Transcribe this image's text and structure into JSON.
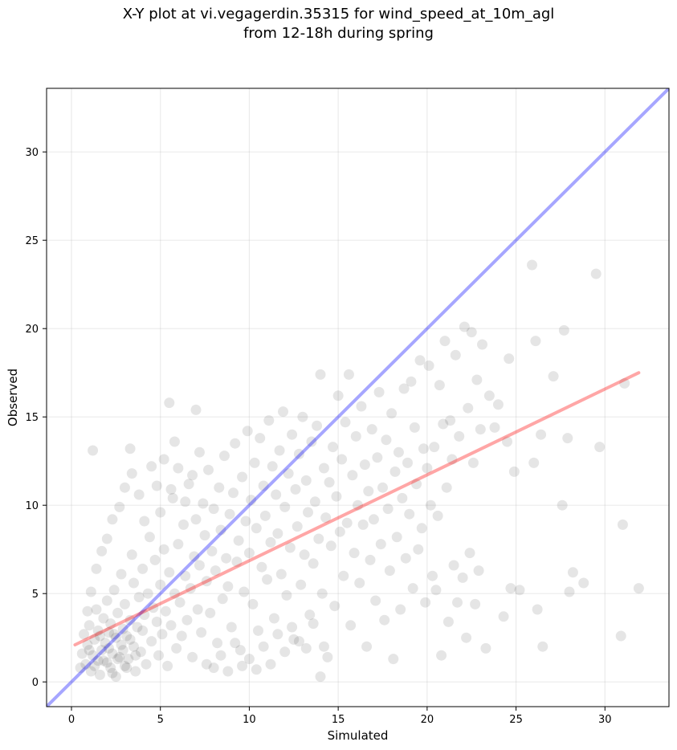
{
  "chart_data": {
    "type": "scatter",
    "title": "X-Y plot at vi.vegagerdin.35315 for wind_speed_at_10m_agl",
    "subtitle": "from 12-18h during spring",
    "xlabel": "Simulated",
    "ylabel": "Observed",
    "xlim": [
      -1.4,
      33.6
    ],
    "ylim": [
      -1.4,
      33.6
    ],
    "xticks": [
      0,
      5,
      10,
      15,
      20,
      25,
      30
    ],
    "yticks": [
      0,
      5,
      10,
      15,
      20,
      25,
      30
    ],
    "grid": true,
    "point_color": "#000000",
    "point_alpha": 0.1,
    "points": [
      [
        1.2,
        13.1
      ],
      [
        3.3,
        13.2
      ],
      [
        5.5,
        15.8
      ],
      [
        7.0,
        15.4
      ],
      [
        5.8,
        13.6
      ],
      [
        0.8,
        1.0
      ],
      [
        0.9,
        2.1
      ],
      [
        1.0,
        3.2
      ],
      [
        1.1,
        0.6
      ],
      [
        1.2,
        1.5
      ],
      [
        1.3,
        2.4
      ],
      [
        1.4,
        4.1
      ],
      [
        1.5,
        1.2
      ],
      [
        1.5,
        2.9
      ],
      [
        1.6,
        0.4
      ],
      [
        1.7,
        1.8
      ],
      [
        1.8,
        3.6
      ],
      [
        1.9,
        2.2
      ],
      [
        2.0,
        1.1
      ],
      [
        2.0,
        4.6
      ],
      [
        2.1,
        2.8
      ],
      [
        2.2,
        0.8
      ],
      [
        2.2,
        3.3
      ],
      [
        2.3,
        1.6
      ],
      [
        2.4,
        5.2
      ],
      [
        2.5,
        2.5
      ],
      [
        2.5,
        0.3
      ],
      [
        2.6,
        3.9
      ],
      [
        2.7,
        1.4
      ],
      [
        2.8,
        2.1
      ],
      [
        2.8,
        6.1
      ],
      [
        2.9,
        3.0
      ],
      [
        3.0,
        0.9
      ],
      [
        3.0,
        4.4
      ],
      [
        3.1,
        2.6
      ],
      [
        3.2,
        1.3
      ],
      [
        3.3,
        3.5
      ],
      [
        3.4,
        7.2
      ],
      [
        3.5,
        2.0
      ],
      [
        3.5,
        5.6
      ],
      [
        3.6,
        0.6
      ],
      [
        3.7,
        3.1
      ],
      [
        3.8,
        4.8
      ],
      [
        3.9,
        1.7
      ],
      [
        4.0,
        6.4
      ],
      [
        4.0,
        2.9
      ],
      [
        4.1,
        3.8
      ],
      [
        4.2,
        1.0
      ],
      [
        4.3,
        5.0
      ],
      [
        4.4,
        8.2
      ],
      [
        4.5,
        2.3
      ],
      [
        4.6,
        4.2
      ],
      [
        4.7,
        6.9
      ],
      [
        4.8,
        3.4
      ],
      [
        4.9,
        1.5
      ],
      [
        5.0,
        5.5
      ],
      [
        5.0,
        9.6
      ],
      [
        5.1,
        2.7
      ],
      [
        5.2,
        7.5
      ],
      [
        5.3,
        4.0
      ],
      [
        5.4,
        0.9
      ],
      [
        5.5,
        6.2
      ],
      [
        5.6,
        3.2
      ],
      [
        5.7,
        10.4
      ],
      [
        5.8,
        5.0
      ],
      [
        5.9,
        1.9
      ],
      [
        6.0,
        7.8
      ],
      [
        6.1,
        4.5
      ],
      [
        6.2,
        2.6
      ],
      [
        6.3,
        8.9
      ],
      [
        6.4,
        6.0
      ],
      [
        6.5,
        3.5
      ],
      [
        6.6,
        11.2
      ],
      [
        6.7,
        5.3
      ],
      [
        6.8,
        1.4
      ],
      [
        6.9,
        7.1
      ],
      [
        7.0,
        9.2
      ],
      [
        7.1,
        4.1
      ],
      [
        7.2,
        6.6
      ],
      [
        7.3,
        2.8
      ],
      [
        7.4,
        10.1
      ],
      [
        7.5,
        8.3
      ],
      [
        7.6,
        5.7
      ],
      [
        7.7,
        12.0
      ],
      [
        7.8,
        3.9
      ],
      [
        7.9,
        7.4
      ],
      [
        8.0,
        9.8
      ],
      [
        8.1,
        6.3
      ],
      [
        8.2,
        2.2
      ],
      [
        8.3,
        11.0
      ],
      [
        8.4,
        8.6
      ],
      [
        8.5,
        4.7
      ],
      [
        8.6,
        12.8
      ],
      [
        8.7,
        7.0
      ],
      [
        8.8,
        5.4
      ],
      [
        8.9,
        9.5
      ],
      [
        9.0,
        3.1
      ],
      [
        9.1,
        10.7
      ],
      [
        9.2,
        13.5
      ],
      [
        9.3,
        6.8
      ],
      [
        9.4,
        8.0
      ],
      [
        9.5,
        1.8
      ],
      [
        9.6,
        11.6
      ],
      [
        9.7,
        5.1
      ],
      [
        9.8,
        9.1
      ],
      [
        9.9,
        14.2
      ],
      [
        10.0,
        7.3
      ],
      [
        10.1,
        10.3
      ],
      [
        10.2,
        4.4
      ],
      [
        10.3,
        12.4
      ],
      [
        10.4,
        8.7
      ],
      [
        10.5,
        2.9
      ],
      [
        10.6,
        13.8
      ],
      [
        10.7,
        6.5
      ],
      [
        10.8,
        11.1
      ],
      [
        10.9,
        9.4
      ],
      [
        11.0,
        5.8
      ],
      [
        11.1,
        14.8
      ],
      [
        11.2,
        7.9
      ],
      [
        11.3,
        12.2
      ],
      [
        11.4,
        3.6
      ],
      [
        11.5,
        10.6
      ],
      [
        11.6,
        8.4
      ],
      [
        11.7,
        13.1
      ],
      [
        11.8,
        6.1
      ],
      [
        11.9,
        15.3
      ],
      [
        12.0,
        9.9
      ],
      [
        12.1,
        4.9
      ],
      [
        12.2,
        11.8
      ],
      [
        12.3,
        7.6
      ],
      [
        12.4,
        14.0
      ],
      [
        12.5,
        2.4
      ],
      [
        12.6,
        10.9
      ],
      [
        12.7,
        8.8
      ],
      [
        12.8,
        12.9
      ],
      [
        12.9,
        5.5
      ],
      [
        13.0,
        15.0
      ],
      [
        13.1,
        7.2
      ],
      [
        13.2,
        11.4
      ],
      [
        13.3,
        9.6
      ],
      [
        13.4,
        3.8
      ],
      [
        13.5,
        13.6
      ],
      [
        13.6,
        6.7
      ],
      [
        13.7,
        10.2
      ],
      [
        13.8,
        14.5
      ],
      [
        13.9,
        8.1
      ],
      [
        14.0,
        17.4
      ],
      [
        14.1,
        5.0
      ],
      [
        14.2,
        12.1
      ],
      [
        14.3,
        9.3
      ],
      [
        14.4,
        1.4
      ],
      [
        14.5,
        11.3
      ],
      [
        14.6,
        7.7
      ],
      [
        14.7,
        13.3
      ],
      [
        14.8,
        4.3
      ],
      [
        14.9,
        10.5
      ],
      [
        15.0,
        16.2
      ],
      [
        15.1,
        8.5
      ],
      [
        15.2,
        12.6
      ],
      [
        15.3,
        6.0
      ],
      [
        15.4,
        14.7
      ],
      [
        15.5,
        9.0
      ],
      [
        15.6,
        17.4
      ],
      [
        15.7,
        3.2
      ],
      [
        15.8,
        11.7
      ],
      [
        15.9,
        7.3
      ],
      [
        16.0,
        13.9
      ],
      [
        16.1,
        10.0
      ],
      [
        16.2,
        5.6
      ],
      [
        16.3,
        15.6
      ],
      [
        16.4,
        8.9
      ],
      [
        16.5,
        12.3
      ],
      [
        16.6,
        2.0
      ],
      [
        16.7,
        10.8
      ],
      [
        16.8,
        6.9
      ],
      [
        16.9,
        14.3
      ],
      [
        17.0,
        9.2
      ],
      [
        17.1,
        4.6
      ],
      [
        17.2,
        12.7
      ],
      [
        17.3,
        16.4
      ],
      [
        17.4,
        7.8
      ],
      [
        17.5,
        11.0
      ],
      [
        17.6,
        3.5
      ],
      [
        17.7,
        13.7
      ],
      [
        17.8,
        9.8
      ],
      [
        17.9,
        6.3
      ],
      [
        18.0,
        15.2
      ],
      [
        18.1,
        1.3
      ],
      [
        18.2,
        11.9
      ],
      [
        18.3,
        8.2
      ],
      [
        18.4,
        13.0
      ],
      [
        18.5,
        4.1
      ],
      [
        18.6,
        10.4
      ],
      [
        18.7,
        16.6
      ],
      [
        18.8,
        7.0
      ],
      [
        18.9,
        12.4
      ],
      [
        19.0,
        9.5
      ],
      [
        19.1,
        17.0
      ],
      [
        19.2,
        5.3
      ],
      [
        19.3,
        14.4
      ],
      [
        19.4,
        11.2
      ],
      [
        19.5,
        7.5
      ],
      [
        19.6,
        18.2
      ],
      [
        19.7,
        8.7
      ],
      [
        19.8,
        13.2
      ],
      [
        19.9,
        4.5
      ],
      [
        20.0,
        12.1
      ],
      [
        20.1,
        17.9
      ],
      [
        20.2,
        10.0
      ],
      [
        20.3,
        6.0
      ],
      [
        20.4,
        13.3
      ],
      [
        20.5,
        5.2
      ],
      [
        20.6,
        9.4
      ],
      [
        20.7,
        16.8
      ],
      [
        20.8,
        1.5
      ],
      [
        20.9,
        14.6
      ],
      [
        21.0,
        19.3
      ],
      [
        21.1,
        11.0
      ],
      [
        21.2,
        3.4
      ],
      [
        21.3,
        14.8
      ],
      [
        21.4,
        12.6
      ],
      [
        21.5,
        6.6
      ],
      [
        21.6,
        18.5
      ],
      [
        21.7,
        4.5
      ],
      [
        21.8,
        13.9
      ],
      [
        22.0,
        5.9
      ],
      [
        22.1,
        20.1
      ],
      [
        22.2,
        2.5
      ],
      [
        22.3,
        15.5
      ],
      [
        22.4,
        7.3
      ],
      [
        22.5,
        19.8
      ],
      [
        22.6,
        12.4
      ],
      [
        22.7,
        4.4
      ],
      [
        22.8,
        17.1
      ],
      [
        22.9,
        6.3
      ],
      [
        23.0,
        14.3
      ],
      [
        23.1,
        19.1
      ],
      [
        23.3,
        1.9
      ],
      [
        23.5,
        16.2
      ],
      [
        23.8,
        14.4
      ],
      [
        24.0,
        15.7
      ],
      [
        24.3,
        3.7
      ],
      [
        24.5,
        13.6
      ],
      [
        24.6,
        18.3
      ],
      [
        24.7,
        5.3
      ],
      [
        24.9,
        11.9
      ],
      [
        25.2,
        5.2
      ],
      [
        25.9,
        23.6
      ],
      [
        26.0,
        12.4
      ],
      [
        26.1,
        19.3
      ],
      [
        26.2,
        4.1
      ],
      [
        26.4,
        14.0
      ],
      [
        26.5,
        2.0
      ],
      [
        27.1,
        17.3
      ],
      [
        27.6,
        10.0
      ],
      [
        27.7,
        19.9
      ],
      [
        27.9,
        13.8
      ],
      [
        28.0,
        5.1
      ],
      [
        28.2,
        6.2
      ],
      [
        28.8,
        5.6
      ],
      [
        29.5,
        23.1
      ],
      [
        29.7,
        13.3
      ],
      [
        30.9,
        2.6
      ],
      [
        31.0,
        8.9
      ],
      [
        31.1,
        16.9
      ],
      [
        31.9,
        5.3
      ],
      [
        1.0,
        1.8
      ],
      [
        1.3,
        0.9
      ],
      [
        1.6,
        2.6
      ],
      [
        1.8,
        1.2
      ],
      [
        2.1,
        1.9
      ],
      [
        2.3,
        0.5
      ],
      [
        2.4,
        2.7
      ],
      [
        2.6,
        1.3
      ],
      [
        2.9,
        1.8
      ],
      [
        3.1,
        0.8
      ],
      [
        3.3,
        2.4
      ],
      [
        3.6,
        1.5
      ],
      [
        0.5,
        0.8
      ],
      [
        0.6,
        1.6
      ],
      [
        0.7,
        2.7
      ],
      [
        0.9,
        4.0
      ],
      [
        1.1,
        5.1
      ],
      [
        1.4,
        6.4
      ],
      [
        1.7,
        7.4
      ],
      [
        2.0,
        8.1
      ],
      [
        2.3,
        9.2
      ],
      [
        2.7,
        9.9
      ],
      [
        3.0,
        11.0
      ],
      [
        3.4,
        11.8
      ],
      [
        3.8,
        10.6
      ],
      [
        4.1,
        9.1
      ],
      [
        4.5,
        12.2
      ],
      [
        4.8,
        11.1
      ],
      [
        5.2,
        12.6
      ],
      [
        5.6,
        10.9
      ],
      [
        6.0,
        12.1
      ],
      [
        6.4,
        10.2
      ],
      [
        6.8,
        11.7
      ],
      [
        7.2,
        13.0
      ],
      [
        7.6,
        1.0
      ],
      [
        8.0,
        0.8
      ],
      [
        8.4,
        1.5
      ],
      [
        8.8,
        0.6
      ],
      [
        9.2,
        2.2
      ],
      [
        9.6,
        0.9
      ],
      [
        10.0,
        1.3
      ],
      [
        10.4,
        0.7
      ],
      [
        10.8,
        2.0
      ],
      [
        11.2,
        1.0
      ],
      [
        11.6,
        2.7
      ],
      [
        12.0,
        1.7
      ],
      [
        12.4,
        3.1
      ],
      [
        12.8,
        2.3
      ],
      [
        13.2,
        1.9
      ],
      [
        13.6,
        3.3
      ],
      [
        14.0,
        0.3
      ],
      [
        14.2,
        2.0
      ]
    ],
    "reference_line": {
      "name": "1:1 line",
      "color": "#0000ff",
      "alpha": 0.35,
      "slope": 1,
      "intercept": 0
    },
    "fit_line": {
      "name": "regression",
      "color": "#ff0000",
      "alpha": 0.35,
      "x": [
        0.2,
        31.9
      ],
      "y": [
        2.1,
        17.5
      ]
    }
  }
}
